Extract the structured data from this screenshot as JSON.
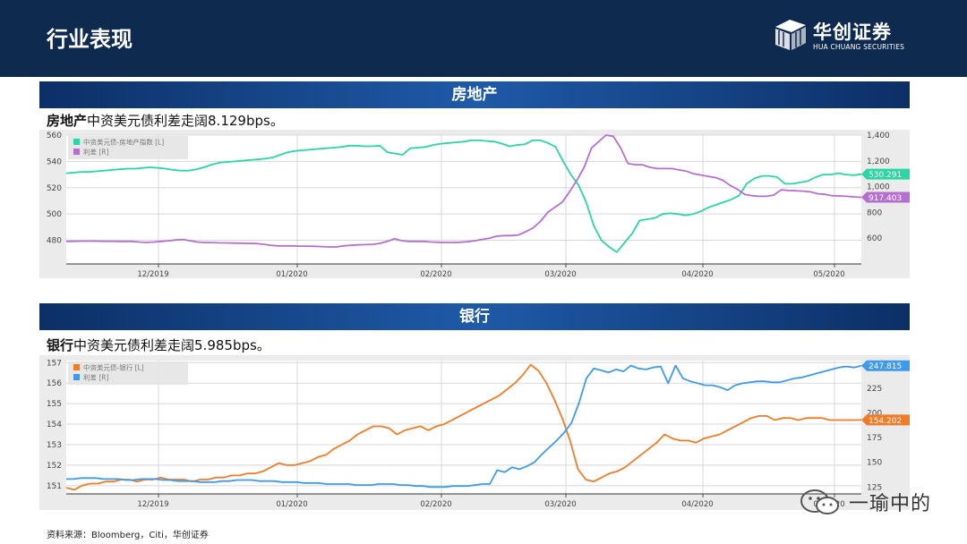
{
  "header": {
    "title": "行业表现"
  },
  "logo": {
    "cn": "华创证券",
    "en": "HUA CHUANG SECURITIES"
  },
  "colors": {
    "header": "#0e2a4f",
    "teal": "#2ad6a2",
    "purple": "#b56fd0",
    "orange": "#f07c28",
    "blue": "#3f9aec"
  },
  "sections": [
    {
      "banner": "房地产",
      "caption_bold": "房地产",
      "caption_rest": "中资美元债利差走阔8.129bps。"
    },
    {
      "banner": "银行",
      "caption_bold": "银行",
      "caption_rest": "中资美元债利差走阔5.985bps。"
    }
  ],
  "source": "资料来源：Bloomberg，Citi，华创证券",
  "watermark": "一瑜中的",
  "chart_data": [
    {
      "type": "line",
      "x_ticks": [
        "12/2019",
        "01/2020",
        "02/2020",
        "03/2020",
        "04/2020",
        "05/2020"
      ],
      "left_ticks": [
        "560",
        "540",
        "520",
        "500",
        "480"
      ],
      "right_ticks": [
        "1,400",
        "1,200",
        "1,000",
        "800",
        "600"
      ],
      "ylim_left": [
        462,
        560
      ],
      "ylim_right": [
        400,
        1400
      ],
      "series": [
        {
          "name": "中资美元债-房地产指数 [L]",
          "axis": "left",
          "color": "#2ad6a2",
          "last_label": "530.291",
          "values": [
            531,
            531.5,
            532,
            532,
            532.5,
            533,
            533.5,
            534,
            534.5,
            534.5,
            535,
            535.5,
            535,
            534.5,
            533.5,
            533,
            533,
            534,
            535.5,
            537.5,
            539,
            539.5,
            540,
            540.5,
            541,
            541.5,
            542,
            543,
            545,
            547,
            548,
            548.5,
            549,
            549.5,
            550,
            550.5,
            551,
            552,
            552,
            551.5,
            551.5,
            552,
            547,
            546,
            545,
            550,
            550.5,
            551,
            552.5,
            553.5,
            554,
            554.5,
            555,
            556,
            556,
            555.5,
            555,
            553.5,
            551.5,
            552.5,
            553,
            556,
            556,
            554,
            551,
            540,
            530,
            522,
            509,
            491,
            480,
            475,
            471,
            478,
            485,
            495,
            496,
            497,
            500,
            500.5,
            500,
            499,
            500,
            502,
            505,
            507,
            509,
            511,
            514,
            523,
            527,
            529,
            529,
            528,
            523,
            523,
            524,
            525,
            528,
            530,
            530,
            531,
            530,
            529.5,
            530.291
          ]
        },
        {
          "name": "利差 [R]",
          "axis": "right",
          "color": "#b56fd0",
          "last_label": "917.403",
          "values": [
            575,
            576,
            577,
            577,
            578,
            576,
            576,
            575,
            575,
            575,
            570,
            567,
            570,
            575,
            580,
            586,
            590,
            580,
            570,
            566,
            566,
            564,
            563,
            562,
            561,
            560,
            558,
            553,
            545,
            540,
            540,
            540,
            538,
            538,
            537,
            535,
            532,
            532,
            540,
            545,
            548,
            550,
            552,
            560,
            575,
            595,
            580,
            575,
            575,
            575,
            570,
            568,
            567,
            567,
            568,
            572,
            580,
            590,
            600,
            615,
            620,
            620,
            625,
            650,
            680,
            730,
            800,
            840,
            880,
            960,
            1050,
            1150,
            1300,
            1350,
            1400,
            1390,
            1300,
            1180,
            1170,
            1170,
            1150,
            1140,
            1140,
            1140,
            1130,
            1120,
            1100,
            1090,
            1080,
            1070,
            1050,
            1010,
            980,
            940,
            930,
            925,
            925,
            935,
            975,
            970,
            968,
            965,
            960,
            945,
            940,
            930,
            928,
            925,
            920,
            917.403
          ]
        }
      ]
    },
    {
      "type": "line",
      "x_ticks": [
        "12/2019",
        "01/2020",
        "02/2020",
        "03/2020",
        "04/2020",
        "05/2020"
      ],
      "left_ticks": [
        "157",
        "156",
        "155",
        "154",
        "153",
        "152",
        "151"
      ],
      "right_ticks": [
        "250",
        "225",
        "200",
        "175",
        "150",
        "125"
      ],
      "ylim_left": [
        150.6,
        157.1
      ],
      "ylim_right": [
        118,
        253
      ],
      "series": [
        {
          "name": "中资美元债-银行 [L]",
          "axis": "left",
          "color": "#f07c28",
          "last_label": "154.202",
          "values": [
            150.9,
            150.8,
            151.0,
            151.1,
            151.1,
            151.2,
            151.2,
            151.3,
            151.3,
            151.2,
            151.3,
            151.3,
            151.4,
            151.3,
            151.3,
            151.3,
            151.2,
            151.3,
            151.3,
            151.4,
            151.4,
            151.5,
            151.5,
            151.6,
            151.6,
            151.7,
            151.9,
            152.1,
            152.0,
            152.0,
            152.1,
            152.2,
            152.4,
            152.5,
            152.8,
            153.0,
            153.2,
            153.5,
            153.7,
            153.9,
            153.9,
            153.8,
            153.5,
            153.7,
            153.8,
            153.9,
            153.7,
            153.9,
            154.0,
            154.2,
            154.4,
            154.6,
            154.8,
            155.0,
            155.2,
            155.4,
            155.7,
            156.0,
            156.4,
            156.9,
            156.6,
            156.0,
            155.2,
            154.3,
            153.2,
            151.8,
            151.3,
            151.2,
            151.4,
            151.6,
            151.7,
            151.9,
            152.2,
            152.5,
            152.8,
            153.1,
            153.5,
            153.3,
            153.2,
            153.2,
            153.1,
            153.3,
            153.4,
            153.5,
            153.7,
            153.9,
            154.1,
            154.3,
            154.4,
            154.4,
            154.2,
            154.3,
            154.3,
            154.2,
            154.3,
            154.3,
            154.3,
            154.2,
            154.2,
            154.2,
            154.2,
            154.202
          ]
        },
        {
          "name": "利差 [R]",
          "axis": "right",
          "color": "#3f9aec",
          "last_label": "247.815",
          "values": [
            133,
            133,
            134,
            134,
            134,
            133,
            133,
            133,
            132,
            132,
            133,
            133,
            133,
            132,
            132,
            131,
            131,
            131,
            130,
            130,
            130,
            131,
            131,
            132,
            132,
            132,
            131,
            131,
            131,
            130,
            130,
            130,
            129,
            129,
            129,
            128,
            128,
            128,
            128,
            127,
            127,
            127,
            128,
            128,
            128,
            127,
            127,
            126,
            126,
            125,
            125,
            125,
            126,
            126,
            126,
            127,
            128,
            128,
            142,
            140,
            145,
            143,
            146,
            150,
            158,
            165,
            172,
            180,
            190,
            210,
            235,
            245,
            243,
            241,
            244,
            242,
            248,
            245,
            244,
            246,
            247,
            230,
            248,
            235,
            232,
            230,
            228,
            228,
            226,
            223,
            228,
            230,
            231,
            232,
            232,
            231,
            231,
            233,
            235,
            236,
            238,
            240,
            242,
            244,
            246,
            247,
            246,
            247.815
          ]
        }
      ]
    }
  ]
}
